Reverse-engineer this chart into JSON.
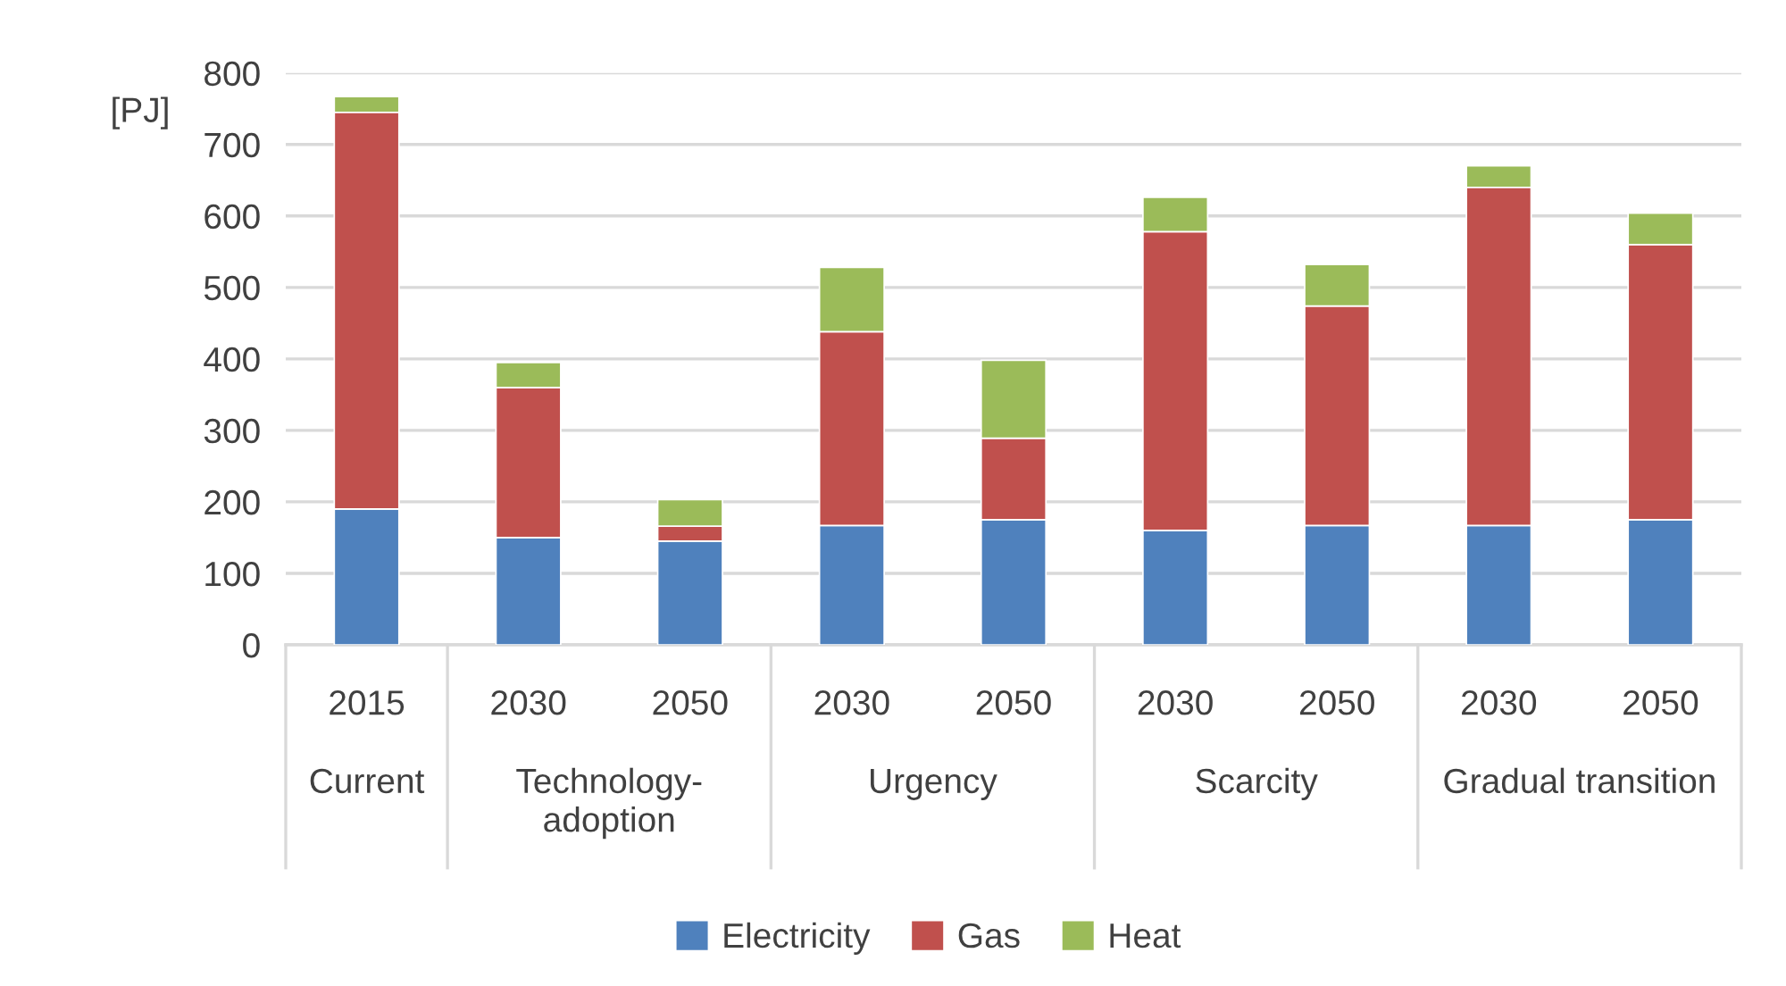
{
  "chart_data": {
    "type": "bar",
    "stacked": true,
    "ylabel": "[PJ]",
    "categories": [
      "2015",
      "2030",
      "2050",
      "2030",
      "2050",
      "2030",
      "2050",
      "2030",
      "2050"
    ],
    "series": [
      {
        "name": "Electricity",
        "color": "#4f81bd",
        "values": [
          190,
          150,
          145,
          167,
          175,
          160,
          167,
          167,
          175
        ]
      },
      {
        "name": "Gas",
        "color": "#c0504d",
        "values": [
          555,
          210,
          21,
          271,
          114,
          418,
          307,
          473,
          385
        ]
      },
      {
        "name": "Heat",
        "color": "#9bbb59",
        "values": [
          22,
          35,
          37,
          90,
          109,
          48,
          58,
          30,
          44
        ]
      }
    ],
    "annotations": [
      "Current",
      "Technology-\nadoption",
      "Urgency",
      "Scarcity",
      "Gradual transition"
    ],
    "ylim": [
      0,
      800
    ],
    "yticks": [
      0,
      100,
      200,
      300,
      400,
      500,
      600,
      700,
      800
    ],
    "grid": "y",
    "legend": "bottom"
  }
}
